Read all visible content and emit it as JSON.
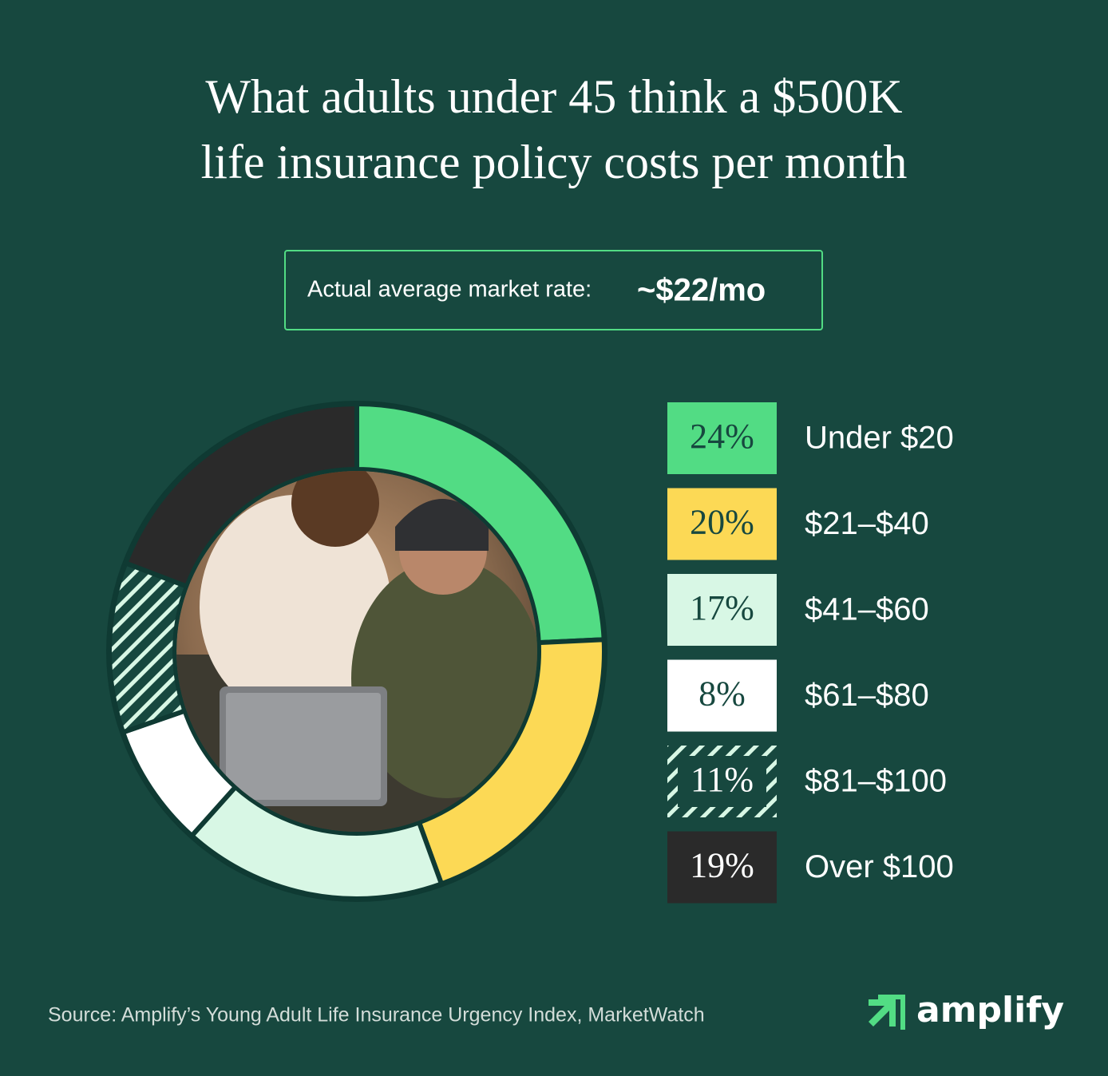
{
  "chart_data": {
    "type": "donut",
    "title": "What adults under 45 think a $500K life insurance policy costs per month",
    "annotation": {
      "label": "Actual average market rate:",
      "value": "~$22/mo"
    },
    "categories": [
      "Under $20",
      "$21–$40",
      "$41–$60",
      "$61–$80",
      "$81–$100",
      "Over $100"
    ],
    "values": [
      24,
      20,
      17,
      8,
      11,
      19
    ],
    "value_labels": [
      "24%",
      "20%",
      "17%",
      "8%",
      "11%",
      "19%"
    ],
    "colors": [
      "#52dc84",
      "#fcd955",
      "#d8f7e5",
      "#ffffff",
      "#17483f",
      "#2a2a2a"
    ],
    "patterns": [
      "solid",
      "solid",
      "solid",
      "solid",
      "stripes",
      "solid"
    ],
    "source": "Source: Amplify’s Young Adult Life Insurance Urgency Index, MarketWatch",
    "brand": "amplify"
  }
}
